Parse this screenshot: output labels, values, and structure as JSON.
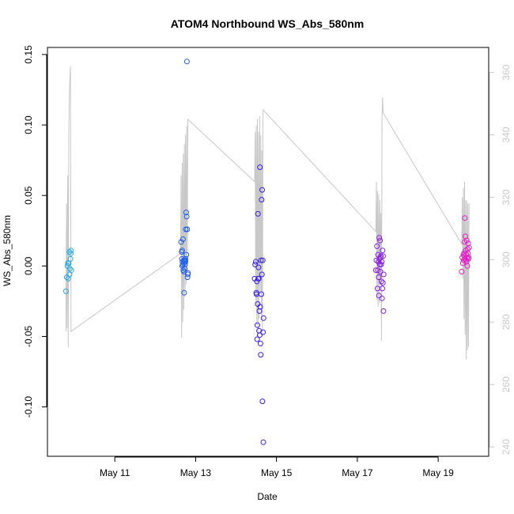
{
  "chart_data": {
    "type": "scatter",
    "title": "ATOM4 Northbound WS_Abs_580nm",
    "xlabel": "Date",
    "ylabel": "WS_Abs_580nm",
    "x_unit": "date",
    "xlim": [
      "2016-05-09T08:00",
      "2016-05-20T06:00"
    ],
    "ylim": [
      -0.135,
      0.155
    ],
    "x_ticks": [
      {
        "date": "2016-05-11T00:00",
        "label": "May 11"
      },
      {
        "date": "2016-05-13T00:00",
        "label": "May 13"
      },
      {
        "date": "2016-05-15T00:00",
        "label": "May 15"
      },
      {
        "date": "2016-05-17T00:00",
        "label": "May 17"
      },
      {
        "date": "2016-05-19T00:00",
        "label": "May 19"
      }
    ],
    "y_ticks": [
      {
        "value": -0.1,
        "label": "-0.10"
      },
      {
        "value": -0.05,
        "label": "-0.05"
      },
      {
        "value": 0.0,
        "label": "0.00"
      },
      {
        "value": 0.05,
        "label": "0.05"
      },
      {
        "value": 0.1,
        "label": "0.10"
      },
      {
        "value": 0.15,
        "label": "0.15"
      }
    ],
    "y2lim": [
      237,
      368
    ],
    "y2_ticks": [
      {
        "value": 240,
        "label": "240"
      },
      {
        "value": 260,
        "label": "260"
      },
      {
        "value": 280,
        "label": "280"
      },
      {
        "value": 300,
        "label": "300"
      },
      {
        "value": 320,
        "label": "320"
      },
      {
        "value": 340,
        "label": "340"
      },
      {
        "value": 360,
        "label": "360"
      }
    ],
    "grid": false,
    "legend": "none",
    "colors": {
      "line": "#c8c8c8",
      "right_axis": "#c8c8c8",
      "box": "#000000"
    },
    "series": [
      {
        "color": "#29abe2",
        "points": [
          [
            "2016-05-09T19:00",
            -0.018
          ],
          [
            "2016-05-09T19:30",
            -0.008
          ],
          [
            "2016-05-09T19:50",
            0.0
          ],
          [
            "2016-05-09T20:10",
            0.002
          ],
          [
            "2016-05-09T20:20",
            -0.009
          ],
          [
            "2016-05-09T20:40",
            0.002
          ],
          [
            "2016-05-09T21:00",
            0.01
          ],
          [
            "2016-05-09T21:10",
            -0.006
          ],
          [
            "2016-05-09T21:20",
            -0.002
          ],
          [
            "2016-05-09T21:40",
            0.005
          ],
          [
            "2016-05-09T21:50",
            0.009
          ],
          [
            "2016-05-09T22:00",
            0.011
          ],
          [
            "2016-05-09T22:10",
            -0.003
          ]
        ]
      },
      {
        "color": "#1f5fe8",
        "points": [
          [
            "2016-05-12T15:20",
            0.017
          ],
          [
            "2016-05-12T15:40",
            0.01
          ],
          [
            "2016-05-12T15:50",
            0.005
          ],
          [
            "2016-05-12T16:00",
            0.011
          ],
          [
            "2016-05-12T16:10",
            0.003
          ],
          [
            "2016-05-12T16:20",
            0.001
          ],
          [
            "2016-05-12T16:30",
            0.019
          ],
          [
            "2016-05-12T16:40",
            -0.003
          ],
          [
            "2016-05-12T16:50",
            0.004
          ],
          [
            "2016-05-12T17:00",
            0.002
          ],
          [
            "2016-05-12T17:10",
            -0.019
          ],
          [
            "2016-05-12T17:20",
            0.004
          ],
          [
            "2016-05-12T17:30",
            -0.002
          ],
          [
            "2016-05-12T17:40",
            0.001
          ],
          [
            "2016-05-12T17:50",
            0.004
          ],
          [
            "2016-05-12T18:00",
            0.005
          ],
          [
            "2016-05-12T18:10",
            0.026
          ],
          [
            "2016-05-12T18:20",
            0.038
          ],
          [
            "2016-05-12T18:30",
            0.008
          ],
          [
            "2016-05-12T18:40",
            0.035
          ],
          [
            "2016-05-12T18:50",
            0.145
          ],
          [
            "2016-05-12T19:00",
            0.026
          ],
          [
            "2016-05-12T19:10",
            -0.008
          ],
          [
            "2016-05-12T19:20",
            -0.006
          ],
          [
            "2016-05-12T19:30",
            -0.005
          ],
          [
            "2016-05-12T16:00",
            0.0
          ],
          [
            "2016-05-12T17:00",
            -0.004
          ],
          [
            "2016-05-12T18:00",
            0.003
          ]
        ]
      },
      {
        "color": "#3b1fe0",
        "points": [
          [
            "2016-05-14T11:00",
            -0.009
          ],
          [
            "2016-05-14T11:20",
            0.001
          ],
          [
            "2016-05-14T11:40",
            0.003
          ],
          [
            "2016-05-14T12:00",
            -0.019
          ],
          [
            "2016-05-14T12:10",
            -0.02
          ],
          [
            "2016-05-14T12:20",
            -0.011
          ],
          [
            "2016-05-14T12:30",
            -0.052
          ],
          [
            "2016-05-14T12:40",
            -0.042
          ],
          [
            "2016-05-14T12:50",
            -0.027
          ],
          [
            "2016-05-14T13:00",
            0.037
          ],
          [
            "2016-05-14T13:10",
            -0.009
          ],
          [
            "2016-05-14T13:20",
            -0.001
          ],
          [
            "2016-05-14T13:30",
            -0.009
          ],
          [
            "2016-05-14T13:40",
            -0.046
          ],
          [
            "2016-05-14T13:50",
            -0.032
          ],
          [
            "2016-05-14T14:00",
            -0.049
          ],
          [
            "2016-05-14T14:10",
            0.07
          ],
          [
            "2016-05-14T14:20",
            -0.029
          ],
          [
            "2016-05-14T14:30",
            -0.055
          ],
          [
            "2016-05-14T14:40",
            -0.063
          ],
          [
            "2016-05-14T14:50",
            0.004
          ],
          [
            "2016-05-14T15:00",
            -0.02
          ],
          [
            "2016-05-14T15:10",
            0.047
          ],
          [
            "2016-05-14T15:20",
            -0.006
          ],
          [
            "2016-05-14T15:30",
            0.054
          ],
          [
            "2016-05-14T15:40",
            -0.096
          ],
          [
            "2016-05-14T15:50",
            0.004
          ],
          [
            "2016-05-14T16:00",
            -0.047
          ],
          [
            "2016-05-14T16:10",
            -0.125
          ],
          [
            "2016-05-14T16:20",
            -0.037
          ]
        ]
      },
      {
        "color": "#8a1fe0",
        "points": [
          [
            "2016-05-17T11:00",
            -0.003
          ],
          [
            "2016-05-17T11:20",
            0.004
          ],
          [
            "2016-05-17T11:40",
            0.014
          ],
          [
            "2016-05-17T12:00",
            -0.016
          ],
          [
            "2016-05-17T12:10",
            -0.003
          ],
          [
            "2016-05-17T12:20",
            0.008
          ],
          [
            "2016-05-17T12:30",
            0.003
          ],
          [
            "2016-05-17T12:40",
            -0.008
          ],
          [
            "2016-05-17T12:50",
            -0.021
          ],
          [
            "2016-05-17T13:00",
            0.02
          ],
          [
            "2016-05-17T13:10",
            0.005
          ],
          [
            "2016-05-17T13:20",
            0.001
          ],
          [
            "2016-05-17T13:30",
            0.018
          ],
          [
            "2016-05-17T13:40",
            -0.004
          ],
          [
            "2016-05-17T13:50",
            0.006
          ],
          [
            "2016-05-17T14:00",
            0.007
          ],
          [
            "2016-05-17T14:10",
            0.001
          ],
          [
            "2016-05-17T14:20",
            -0.011
          ],
          [
            "2016-05-17T14:30",
            0.003
          ],
          [
            "2016-05-17T14:40",
            -0.023
          ],
          [
            "2016-05-17T14:50",
            -0.016
          ],
          [
            "2016-05-17T15:00",
            0.011
          ],
          [
            "2016-05-17T15:10",
            -0.012
          ],
          [
            "2016-05-17T15:20",
            0.007
          ],
          [
            "2016-05-17T15:30",
            -0.032
          ],
          [
            "2016-05-17T15:40",
            -0.006
          ]
        ]
      },
      {
        "color": "#e01fc8",
        "points": [
          [
            "2016-05-19T14:00",
            -0.004
          ],
          [
            "2016-05-19T14:20",
            0.006
          ],
          [
            "2016-05-19T14:40",
            0.002
          ],
          [
            "2016-05-19T15:00",
            0.008
          ],
          [
            "2016-05-19T15:10",
            0.004
          ],
          [
            "2016-05-19T15:20",
            0.009
          ],
          [
            "2016-05-19T15:30",
            0.007
          ],
          [
            "2016-05-19T15:40",
            0.017
          ],
          [
            "2016-05-19T15:50",
            0.034
          ],
          [
            "2016-05-19T16:00",
            0.005
          ],
          [
            "2016-05-19T16:10",
            0.021
          ],
          [
            "2016-05-19T16:20",
            0.011
          ],
          [
            "2016-05-19T16:30",
            0.004
          ],
          [
            "2016-05-19T16:40",
            0.008
          ],
          [
            "2016-05-19T16:50",
            0.003
          ],
          [
            "2016-05-19T17:00",
            0.018
          ],
          [
            "2016-05-19T17:10",
            0.006
          ],
          [
            "2016-05-19T17:20",
            0.0
          ],
          [
            "2016-05-19T17:30",
            0.012
          ],
          [
            "2016-05-19T17:40",
            0.009
          ],
          [
            "2016-05-19T17:50",
            0.016
          ],
          [
            "2016-05-19T18:00",
            0.005
          ],
          [
            "2016-05-19T18:10",
            0.006
          ],
          [
            "2016-05-19T18:20",
            0.013
          ]
        ]
      }
    ],
    "line_series": {
      "axis": "right",
      "points": [
        [
          "2016-05-09T19:00",
          277
        ],
        [
          "2016-05-09T19:20",
          318
        ],
        [
          "2016-05-09T19:40",
          278
        ],
        [
          "2016-05-09T20:00",
          327
        ],
        [
          "2016-05-09T20:20",
          272
        ],
        [
          "2016-05-09T20:40",
          340
        ],
        [
          "2016-05-09T21:00",
          352
        ],
        [
          "2016-05-09T21:20",
          358
        ],
        [
          "2016-05-09T21:40",
          362
        ],
        [
          "2016-05-09T22:00",
          277
        ],
        [
          "2016-05-12T15:00",
          302
        ],
        [
          "2016-05-12T15:20",
          327
        ],
        [
          "2016-05-12T15:40",
          275
        ],
        [
          "2016-05-12T16:00",
          331
        ],
        [
          "2016-05-12T16:20",
          280
        ],
        [
          "2016-05-12T16:40",
          334
        ],
        [
          "2016-05-12T17:00",
          284
        ],
        [
          "2016-05-12T17:20",
          337
        ],
        [
          "2016-05-12T17:40",
          288
        ],
        [
          "2016-05-12T18:00",
          340
        ],
        [
          "2016-05-12T18:20",
          292
        ],
        [
          "2016-05-12T18:40",
          343
        ],
        [
          "2016-05-12T19:00",
          296
        ],
        [
          "2016-05-12T19:20",
          345
        ],
        [
          "2016-05-14T11:00",
          325
        ],
        [
          "2016-05-14T11:20",
          341
        ],
        [
          "2016-05-14T11:40",
          286
        ],
        [
          "2016-05-14T12:00",
          343
        ],
        [
          "2016-05-14T12:20",
          279
        ],
        [
          "2016-05-14T12:40",
          345
        ],
        [
          "2016-05-14T13:00",
          275
        ],
        [
          "2016-05-14T13:20",
          341
        ],
        [
          "2016-05-14T13:40",
          281
        ],
        [
          "2016-05-14T14:00",
          346
        ],
        [
          "2016-05-14T14:20",
          289
        ],
        [
          "2016-05-14T14:40",
          340
        ],
        [
          "2016-05-14T15:00",
          282
        ],
        [
          "2016-05-14T15:20",
          335
        ],
        [
          "2016-05-14T15:40",
          276
        ],
        [
          "2016-05-14T16:00",
          348
        ],
        [
          "2016-05-17T11:00",
          309
        ],
        [
          "2016-05-17T11:20",
          325
        ],
        [
          "2016-05-17T11:40",
          287
        ],
        [
          "2016-05-17T12:00",
          322
        ],
        [
          "2016-05-17T12:20",
          285
        ],
        [
          "2016-05-17T12:40",
          321
        ],
        [
          "2016-05-17T13:00",
          286
        ],
        [
          "2016-05-17T13:20",
          319
        ],
        [
          "2016-05-17T13:40",
          292
        ],
        [
          "2016-05-17T14:00",
          315
        ],
        [
          "2016-05-17T14:20",
          274
        ],
        [
          "2016-05-17T14:40",
          345
        ],
        [
          "2016-05-17T15:00",
          352
        ],
        [
          "2016-05-17T15:20",
          347
        ],
        [
          "2016-05-19T14:00",
          305
        ],
        [
          "2016-05-19T14:20",
          320
        ],
        [
          "2016-05-19T14:40",
          294
        ],
        [
          "2016-05-19T15:00",
          323
        ],
        [
          "2016-05-19T15:20",
          281
        ],
        [
          "2016-05-19T15:40",
          325
        ],
        [
          "2016-05-19T16:00",
          276
        ],
        [
          "2016-05-19T16:20",
          319
        ],
        [
          "2016-05-19T16:40",
          268
        ],
        [
          "2016-05-19T17:00",
          319
        ],
        [
          "2016-05-19T17:20",
          271
        ],
        [
          "2016-05-19T17:40",
          318
        ],
        [
          "2016-05-19T18:00",
          272
        ],
        [
          "2016-05-19T18:20",
          318
        ]
      ]
    }
  }
}
